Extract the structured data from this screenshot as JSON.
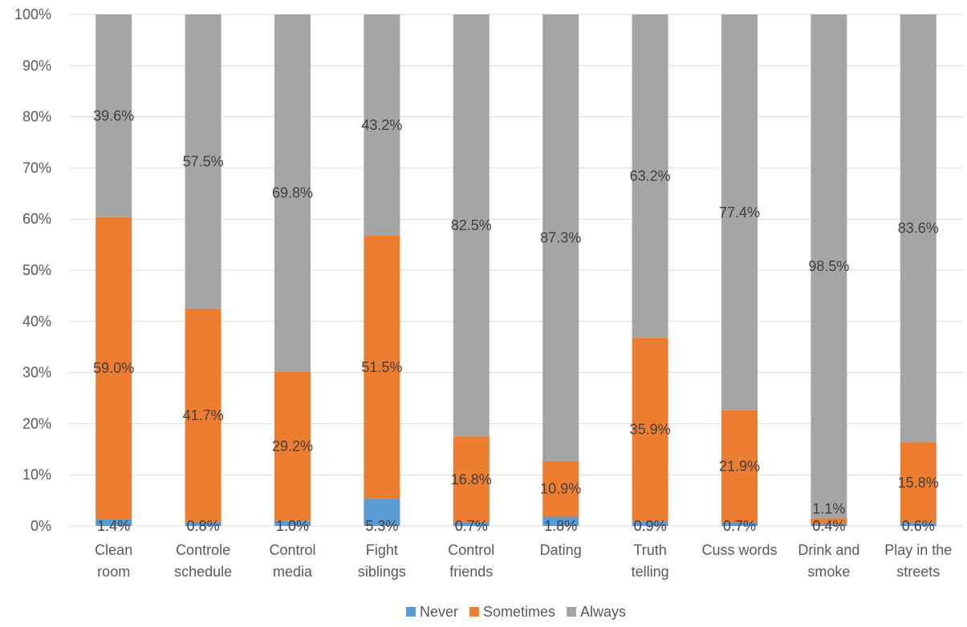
{
  "chart_data": {
    "type": "bar",
    "stacked": true,
    "percent_stacked": true,
    "categories": [
      [
        "Clean",
        "room"
      ],
      [
        "Controle",
        "schedule"
      ],
      [
        "Control",
        "media"
      ],
      [
        "Fight",
        "siblings"
      ],
      [
        "Control",
        "friends"
      ],
      [
        "Dating"
      ],
      [
        "Truth",
        "telling"
      ],
      [
        "Cuss words"
      ],
      [
        "Drink and",
        "smoke"
      ],
      [
        "Play in the",
        "streets"
      ]
    ],
    "series": [
      {
        "name": "Never",
        "color": "#5b9bd5",
        "values": [
          1.4,
          0.8,
          1.0,
          5.3,
          0.7,
          1.8,
          0.9,
          0.7,
          0.4,
          0.6
        ],
        "labels": [
          "1.4%",
          "0.8%",
          "1.0%",
          "5.3%",
          "0.7%",
          "1.8%",
          "0.9%",
          "0.7%",
          "0.4%",
          "0.6%"
        ]
      },
      {
        "name": "Sometimes",
        "color": "#ed7d31",
        "values": [
          59.0,
          41.7,
          29.2,
          51.5,
          16.8,
          10.9,
          35.9,
          21.9,
          1.1,
          15.8
        ],
        "labels": [
          "59.0%",
          "41.7%",
          "29.2%",
          "51.5%",
          "16.8%",
          "10.9%",
          "35.9%",
          "21.9%",
          "1.1%",
          "15.8%"
        ]
      },
      {
        "name": "Always",
        "color": "#a5a5a5",
        "values": [
          39.6,
          57.5,
          69.8,
          43.2,
          82.5,
          87.3,
          63.2,
          77.4,
          98.5,
          83.6
        ],
        "labels": [
          "39.6%",
          "57.5%",
          "69.8%",
          "43.2%",
          "82.5%",
          "87.3%",
          "63.2%",
          "77.4%",
          "98.5%",
          "83.6%"
        ]
      }
    ],
    "yticks": [
      "0%",
      "10%",
      "20%",
      "30%",
      "40%",
      "50%",
      "60%",
      "70%",
      "80%",
      "90%",
      "100%"
    ],
    "ylim": [
      0,
      100
    ],
    "grid": true,
    "legend_position": "bottom"
  }
}
